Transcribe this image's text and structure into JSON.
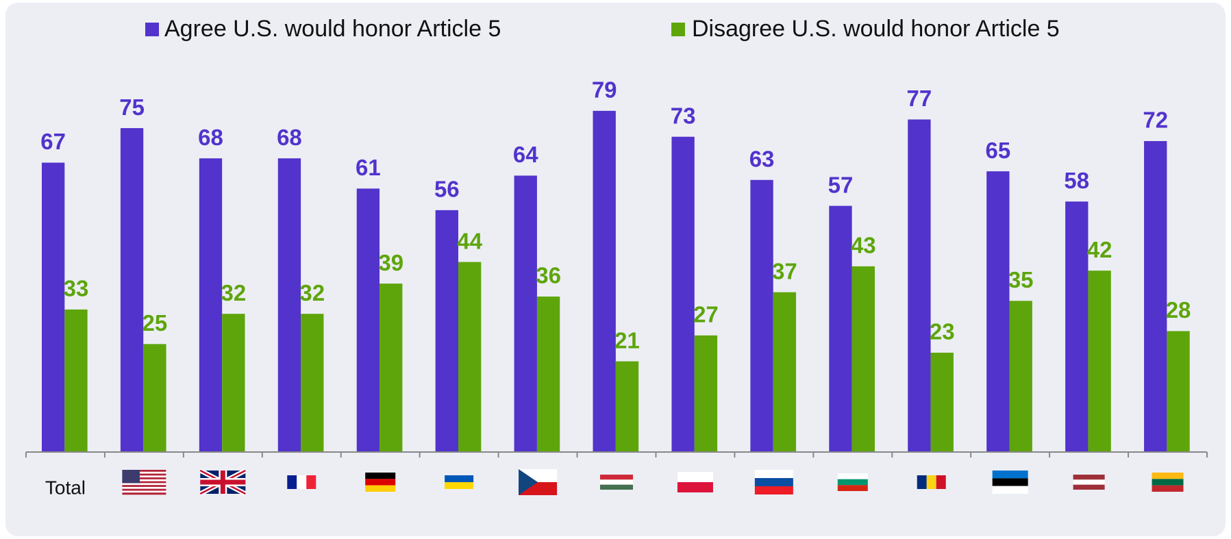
{
  "chart_data": {
    "type": "bar",
    "categories": [
      "Total",
      null,
      null,
      null,
      null,
      null,
      null,
      null,
      null,
      null,
      null,
      null,
      null,
      null,
      null
    ],
    "series": [
      {
        "name": "Agree U.S. would honor Article 5",
        "color": "#5233cc",
        "values": [
          67,
          75,
          68,
          68,
          61,
          56,
          64,
          79,
          73,
          63,
          57,
          77,
          65,
          58,
          72
        ]
      },
      {
        "name": "Disagree U.S. would honor Article 5",
        "color": "#5ea50b",
        "values": [
          33,
          25,
          32,
          32,
          39,
          44,
          36,
          21,
          27,
          37,
          43,
          23,
          35,
          42,
          28
        ]
      }
    ],
    "ylim": [
      0,
      85
    ]
  }
}
